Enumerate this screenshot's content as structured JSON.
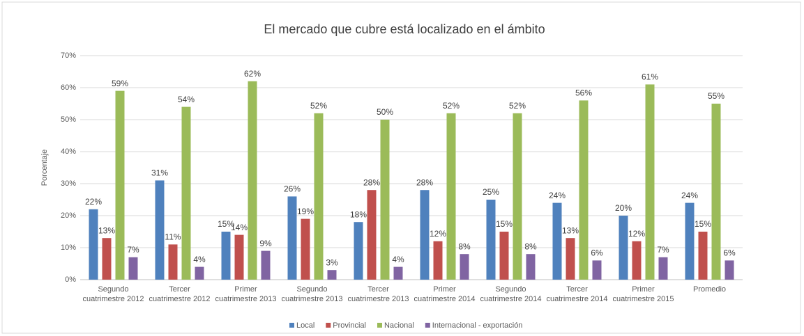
{
  "chart_data": {
    "type": "bar",
    "title": "El mercado que cubre está localizado en el ámbito",
    "y_label": "Porcentaje",
    "categories": [
      "Segundo\ncuatrimestre 2012",
      "Tercer\ncuatrimestre 2012",
      "Primer\ncuatrimestre 2013",
      "Segundo\ncuatrimestre 2013",
      "Tercer\ncuatrimestre 2013",
      "Primer\ncuatrimestre 2014",
      "Segundo\ncuatrimestre 2014",
      "Tercer\ncuatrimestre 2014",
      "Primer\ncuatrimestre 2015",
      "Promedio"
    ],
    "series": [
      {
        "name": "Local",
        "color": "#4f81bd",
        "values": [
          22,
          31,
          15,
          26,
          18,
          28,
          25,
          24,
          20,
          24
        ],
        "value_labels": [
          "22%",
          "31%",
          "15%",
          "26%",
          "18%",
          "28%",
          "25%",
          "24%",
          "20%",
          "24%"
        ]
      },
      {
        "name": "Provincial",
        "color": "#c0504d",
        "values": [
          13,
          11,
          14,
          19,
          28,
          12,
          15,
          13,
          12,
          15
        ],
        "value_labels": [
          "13%",
          "11%",
          "14%",
          "19%",
          "28%",
          "12%",
          "15%",
          "13%",
          "12%",
          "15%"
        ]
      },
      {
        "name": "Nacional",
        "color": "#9bbb59",
        "values": [
          59,
          54,
          62,
          52,
          50,
          52,
          52,
          56,
          61,
          55
        ],
        "value_labels": [
          "59%",
          "54%",
          "62%",
          "52%",
          "50%",
          "52%",
          "52%",
          "56%",
          "61%",
          "55%"
        ]
      },
      {
        "name": "Internacional - exportación",
        "color": "#8064a2",
        "values": [
          7,
          4,
          9,
          3,
          4,
          8,
          8,
          6,
          7,
          6
        ],
        "value_labels": [
          "7%",
          "4%",
          "9%",
          "3%",
          "4%",
          "8%",
          "8%",
          "6%",
          "7%",
          "6%"
        ]
      }
    ],
    "ylim": [
      0,
      70
    ],
    "yticks": [
      {
        "value": 0,
        "label": "0%"
      },
      {
        "value": 10,
        "label": "10%"
      },
      {
        "value": 20,
        "label": "20%"
      },
      {
        "value": 30,
        "label": "30%"
      },
      {
        "value": 40,
        "label": "40%"
      },
      {
        "value": 50,
        "label": "50%"
      },
      {
        "value": 60,
        "label": "60%"
      },
      {
        "value": 70,
        "label": "70%"
      }
    ],
    "grid": true,
    "legend": "bottom"
  }
}
